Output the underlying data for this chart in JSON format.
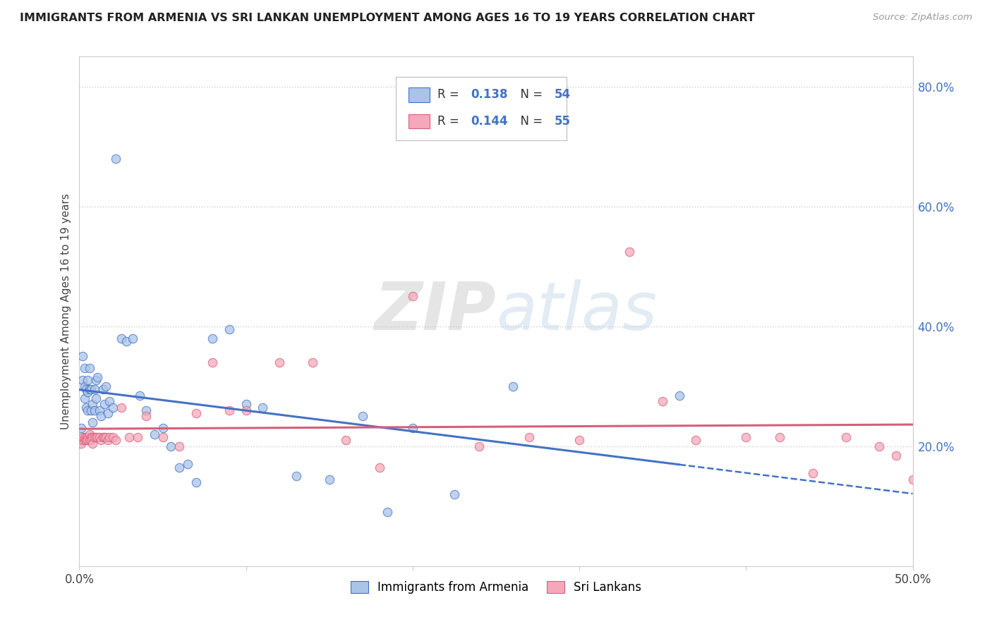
{
  "title": "IMMIGRANTS FROM ARMENIA VS SRI LANKAN UNEMPLOYMENT AMONG AGES 16 TO 19 YEARS CORRELATION CHART",
  "source": "Source: ZipAtlas.com",
  "ylabel": "Unemployment Among Ages 16 to 19 years",
  "xlim": [
    0.0,
    0.5
  ],
  "ylim": [
    0.0,
    0.85
  ],
  "xticks": [
    0.0,
    0.1,
    0.2,
    0.3,
    0.4,
    0.5
  ],
  "xticklabels": [
    "0.0%",
    "",
    "",
    "",
    "",
    "50.0%"
  ],
  "yticks_right": [
    0.2,
    0.4,
    0.6,
    0.8
  ],
  "ytick_labels_right": [
    "20.0%",
    "40.0%",
    "60.0%",
    "80.0%"
  ],
  "legend1_label": "Immigrants from Armenia",
  "legend2_label": "Sri Lankans",
  "armenia_color": "#aac4e8",
  "srilanka_color": "#f5a8bc",
  "armenia_line_color": "#4472c4",
  "srilanka_line_color": "#d4607a",
  "r_armenia": 0.138,
  "n_armenia": 54,
  "r_srilanka": 0.144,
  "n_srilanka": 55,
  "armenia_x": [
    0.001,
    0.002,
    0.002,
    0.003,
    0.003,
    0.003,
    0.004,
    0.004,
    0.005,
    0.005,
    0.005,
    0.006,
    0.006,
    0.007,
    0.007,
    0.008,
    0.008,
    0.009,
    0.009,
    0.01,
    0.01,
    0.011,
    0.012,
    0.013,
    0.014,
    0.015,
    0.016,
    0.017,
    0.018,
    0.02,
    0.022,
    0.025,
    0.028,
    0.032,
    0.036,
    0.04,
    0.045,
    0.05,
    0.055,
    0.06,
    0.065,
    0.07,
    0.08,
    0.09,
    0.1,
    0.11,
    0.13,
    0.15,
    0.17,
    0.185,
    0.2,
    0.225,
    0.26,
    0.36
  ],
  "armenia_y": [
    0.23,
    0.31,
    0.35,
    0.28,
    0.3,
    0.33,
    0.265,
    0.295,
    0.31,
    0.26,
    0.29,
    0.33,
    0.295,
    0.26,
    0.295,
    0.24,
    0.27,
    0.295,
    0.26,
    0.31,
    0.28,
    0.315,
    0.26,
    0.25,
    0.295,
    0.27,
    0.3,
    0.255,
    0.275,
    0.265,
    0.68,
    0.38,
    0.375,
    0.38,
    0.285,
    0.26,
    0.22,
    0.23,
    0.2,
    0.165,
    0.17,
    0.14,
    0.38,
    0.395,
    0.27,
    0.265,
    0.15,
    0.145,
    0.25,
    0.09,
    0.23,
    0.12,
    0.3,
    0.285
  ],
  "srilanka_x": [
    0.001,
    0.002,
    0.002,
    0.003,
    0.003,
    0.004,
    0.004,
    0.005,
    0.005,
    0.006,
    0.006,
    0.007,
    0.007,
    0.008,
    0.008,
    0.009,
    0.01,
    0.011,
    0.012,
    0.013,
    0.014,
    0.015,
    0.016,
    0.017,
    0.018,
    0.02,
    0.022,
    0.025,
    0.03,
    0.035,
    0.04,
    0.05,
    0.06,
    0.07,
    0.08,
    0.09,
    0.1,
    0.12,
    0.14,
    0.16,
    0.18,
    0.2,
    0.24,
    0.27,
    0.3,
    0.33,
    0.35,
    0.37,
    0.4,
    0.42,
    0.44,
    0.46,
    0.48,
    0.49,
    0.5
  ],
  "srilanka_y": [
    0.205,
    0.21,
    0.215,
    0.21,
    0.215,
    0.215,
    0.21,
    0.215,
    0.21,
    0.22,
    0.21,
    0.215,
    0.21,
    0.215,
    0.205,
    0.215,
    0.215,
    0.215,
    0.215,
    0.21,
    0.215,
    0.215,
    0.215,
    0.21,
    0.215,
    0.215,
    0.21,
    0.265,
    0.215,
    0.215,
    0.25,
    0.215,
    0.2,
    0.255,
    0.34,
    0.26,
    0.26,
    0.34,
    0.34,
    0.21,
    0.165,
    0.45,
    0.2,
    0.215,
    0.21,
    0.525,
    0.275,
    0.21,
    0.215,
    0.215,
    0.155,
    0.215,
    0.2,
    0.185,
    0.145
  ],
  "watermark_zip": "ZIP",
  "watermark_atlas": "atlas",
  "background_color": "#ffffff",
  "grid_color": "#cccccc"
}
